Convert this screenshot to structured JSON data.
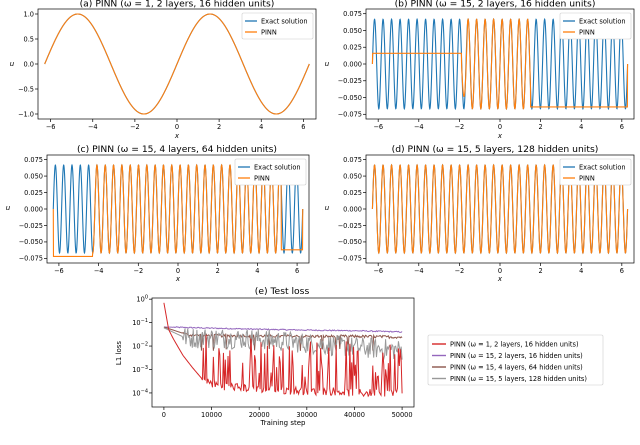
{
  "colors": {
    "exact": "#1f77b4",
    "pinn": "#ff7f0e",
    "loss_series": [
      "#d62728",
      "#9467bd",
      "#8c564b",
      "#999999"
    ]
  },
  "chart_data": [
    {
      "type": "line",
      "panel": "a",
      "title": "(a) PINN (ω = 1, 2 layers, 16 hidden units)",
      "xlabel": "x",
      "ylabel": "u",
      "xlim": [
        -6.6,
        6.6
      ],
      "ylim": [
        -1.1,
        1.1
      ],
      "xticks": [
        -6,
        -4,
        -2,
        0,
        2,
        4,
        6
      ],
      "yticks": [
        -1.0,
        -0.5,
        0.0,
        0.5,
        1.0
      ],
      "ytick_labels": [
        "−1.0",
        "−0.5",
        "0.0",
        "0.5",
        "1.0"
      ],
      "xtick_labels": [
        "−6",
        "−4",
        "−2",
        "0",
        "2",
        "4",
        "6"
      ],
      "legend": "top-right",
      "series": [
        {
          "name": "Exact solution",
          "function": "sin(ωx)",
          "omega": 1,
          "amplitude": 1
        },
        {
          "name": "PINN",
          "function": "sin(ωx)",
          "omega": 1,
          "amplitude": 1,
          "matches_exact": true
        }
      ]
    },
    {
      "type": "line",
      "panel": "b",
      "title": "(b) PINN (ω = 15, 2 layers, 16 hidden units)",
      "xlabel": "x",
      "ylabel": "u",
      "xlim": [
        -6.6,
        6.6
      ],
      "ylim": [
        -0.082,
        0.082
      ],
      "xticks": [
        -6,
        -4,
        -2,
        0,
        2,
        4,
        6
      ],
      "xtick_labels": [
        "−6",
        "−4",
        "−2",
        "0",
        "2",
        "4",
        "6"
      ],
      "yticks": [
        -0.075,
        -0.05,
        -0.025,
        0.0,
        0.025,
        0.05,
        0.075
      ],
      "ytick_labels": [
        "−0.075",
        "−0.050",
        "−0.025",
        "0.000",
        "0.025",
        "0.050",
        "0.075"
      ],
      "legend": "top-right",
      "series": [
        {
          "name": "Exact solution",
          "function": "A·sin(ωx)",
          "omega": 15,
          "amplitude": 0.0667
        },
        {
          "name": "PINN",
          "segments": [
            {
              "x": [
                -6.28,
                -1.9
              ],
              "y": 0.016
            },
            {
              "x": [
                -1.9,
                -1.6
              ],
              "transition": "drop",
              "y_min": -0.078
            },
            {
              "x": [
                -1.6,
                1.5
              ],
              "follows_exact": true
            },
            {
              "x": [
                1.5,
                6.28
              ],
              "y": -0.064
            }
          ]
        }
      ]
    },
    {
      "type": "line",
      "panel": "c",
      "title": "(c) PINN (ω = 15, 4 layers, 64 hidden units)",
      "xlabel": "x",
      "ylabel": "u",
      "xlim": [
        -6.6,
        6.6
      ],
      "ylim": [
        -0.082,
        0.082
      ],
      "xticks": [
        -6,
        -4,
        -2,
        0,
        2,
        4,
        6
      ],
      "xtick_labels": [
        "−6",
        "−4",
        "−2",
        "0",
        "2",
        "4",
        "6"
      ],
      "yticks": [
        -0.075,
        -0.05,
        -0.025,
        0.0,
        0.025,
        0.05,
        0.075
      ],
      "ytick_labels": [
        "−0.075",
        "−0.050",
        "−0.025",
        "0.000",
        "0.025",
        "0.050",
        "0.075"
      ],
      "legend": "top-right",
      "series": [
        {
          "name": "Exact solution",
          "function": "A·sin(ωx)",
          "omega": 15,
          "amplitude": 0.0667
        },
        {
          "name": "PINN",
          "segments": [
            {
              "x": [
                -6.28,
                -4.3
              ],
              "y": -0.072
            },
            {
              "x": [
                -4.3,
                5.2
              ],
              "follows_exact": true
            },
            {
              "x": [
                5.2,
                6.28
              ],
              "y": -0.062
            }
          ]
        }
      ]
    },
    {
      "type": "line",
      "panel": "d",
      "title": "(d) PINN (ω = 15, 5 layers, 128 hidden units)",
      "xlabel": "x",
      "ylabel": "u",
      "xlim": [
        -6.6,
        6.6
      ],
      "ylim": [
        -0.082,
        0.082
      ],
      "xticks": [
        -6,
        -4,
        -2,
        0,
        2,
        4,
        6
      ],
      "xtick_labels": [
        "−6",
        "−4",
        "−2",
        "0",
        "2",
        "4",
        "6"
      ],
      "yticks": [
        -0.075,
        -0.05,
        -0.025,
        0.0,
        0.025,
        0.05,
        0.075
      ],
      "ytick_labels": [
        "−0.075",
        "−0.050",
        "−0.025",
        "0.000",
        "0.025",
        "0.050",
        "0.075"
      ],
      "legend": "top-right",
      "series": [
        {
          "name": "Exact solution",
          "function": "A·sin(ωx)",
          "omega": 15,
          "amplitude": 0.0667
        },
        {
          "name": "PINN",
          "function": "A·sin(ωx)",
          "omega": 15,
          "amplitude": 0.0667,
          "matches_exact": true
        }
      ]
    },
    {
      "type": "line",
      "panel": "e",
      "title": "(e) Test loss",
      "xlabel": "Training step",
      "ylabel": "L1 loss",
      "xlim": [
        -2500,
        52500
      ],
      "ylim_log10": [
        -4.6,
        0.05
      ],
      "yscale": "log",
      "xticks": [
        0,
        10000,
        20000,
        30000,
        40000,
        50000
      ],
      "xtick_labels": [
        "0",
        "10000",
        "20000",
        "30000",
        "40000",
        "50000"
      ],
      "yticks_log10": [
        0,
        -1,
        -2,
        -3,
        -4
      ],
      "legend": "outside-right",
      "series": [
        {
          "name": "PINN (ω = 1, 2 layers, 16 hidden units)",
          "points": [
            [
              0,
              0.7
            ],
            [
              1000,
              0.05
            ],
            [
              2000,
              0.02
            ],
            [
              4000,
              0.004
            ],
            [
              6000,
              0.0012
            ],
            [
              8000,
              0.0004
            ],
            [
              10000,
              0.00025
            ],
            [
              12000,
              0.0002
            ],
            [
              15000,
              0.00018
            ],
            [
              20000,
              0.00015
            ],
            [
              25000,
              0.00013
            ],
            [
              30000,
              0.00012
            ],
            [
              35000,
              0.00012
            ],
            [
              40000,
              0.0001
            ],
            [
              45000,
              0.0001
            ],
            [
              50000,
              0.00012
            ]
          ],
          "noise": "spiky, up to ~1e-2"
        },
        {
          "name": "PINN (ω = 15, 2 layers, 16 hidden units)",
          "points": [
            [
              0,
              0.065
            ],
            [
              10000,
              0.058
            ],
            [
              20000,
              0.052
            ],
            [
              30000,
              0.048
            ],
            [
              40000,
              0.045
            ],
            [
              50000,
              0.04
            ]
          ]
        },
        {
          "name": "PINN (ω = 15, 4 layers, 64 hidden units)",
          "points": [
            [
              0,
              0.065
            ],
            [
              5000,
              0.03
            ],
            [
              10000,
              0.028
            ],
            [
              20000,
              0.027
            ],
            [
              30000,
              0.026
            ],
            [
              40000,
              0.026
            ],
            [
              50000,
              0.024
            ]
          ]
        },
        {
          "name": "PINN (ω = 15, 5 layers, 128 hidden units)",
          "points": [
            [
              0,
              0.06
            ],
            [
              5000,
              0.02
            ],
            [
              10000,
              0.02
            ],
            [
              20000,
              0.018
            ],
            [
              30000,
              0.012
            ],
            [
              40000,
              0.008
            ],
            [
              50000,
              0.006
            ]
          ],
          "noise": "noisy, ~1e-3 to 5e-2"
        }
      ]
    }
  ]
}
